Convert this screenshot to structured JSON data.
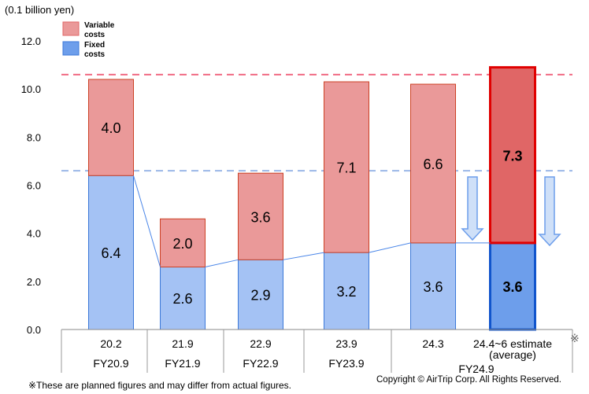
{
  "chart_data": {
    "type": "bar",
    "stacked": true,
    "unit_label": "(0.1 billion yen)",
    "ylim": [
      0,
      12
    ],
    "yticks": [
      "0.0",
      "2.0",
      "4.0",
      "6.0",
      "8.0",
      "10.0",
      "12.0"
    ],
    "categories": [
      "20.2",
      "21.9",
      "22.9",
      "23.9",
      "24.3",
      "24.4~6 estimate"
    ],
    "category_sublabels": [
      "",
      "",
      "",
      "",
      "",
      "(average)"
    ],
    "estimate_mark": "※",
    "fiscal_years": [
      "FY20.9",
      "FY21.9",
      "FY22.9",
      "FY23.9",
      "FY24.9"
    ],
    "series": [
      {
        "name": "Fixed costs",
        "color": "#a4c2f4",
        "values": [
          6.4,
          2.6,
          2.9,
          3.2,
          3.6,
          3.6
        ],
        "labels": [
          "6.4",
          "2.6",
          "2.9",
          "3.2",
          "3.6",
          "3.6"
        ]
      },
      {
        "name": "Variable costs",
        "color": "#ea9999",
        "values": [
          4.0,
          2.0,
          3.6,
          7.1,
          6.6,
          7.3
        ],
        "labels": [
          "4.0",
          "2.0",
          "3.6",
          "7.1",
          "6.6",
          "7.3"
        ]
      }
    ],
    "reference_lines": [
      {
        "value": 10.6,
        "color": "#f06b84",
        "style": "dashed"
      },
      {
        "value": 6.6,
        "color": "#9bb8e8",
        "style": "dashed"
      }
    ],
    "highlight_bar": 5,
    "legend": [
      {
        "label": "Variable\ncosts",
        "color": "#ea9999"
      },
      {
        "label": "Fixed\ncosts",
        "color": "#6d9eeb"
      }
    ]
  },
  "footnote": "※These are planned figures and may differ from actual figures.",
  "copyright": "Copyright © AirTrip Corp. All Rights Reserved."
}
